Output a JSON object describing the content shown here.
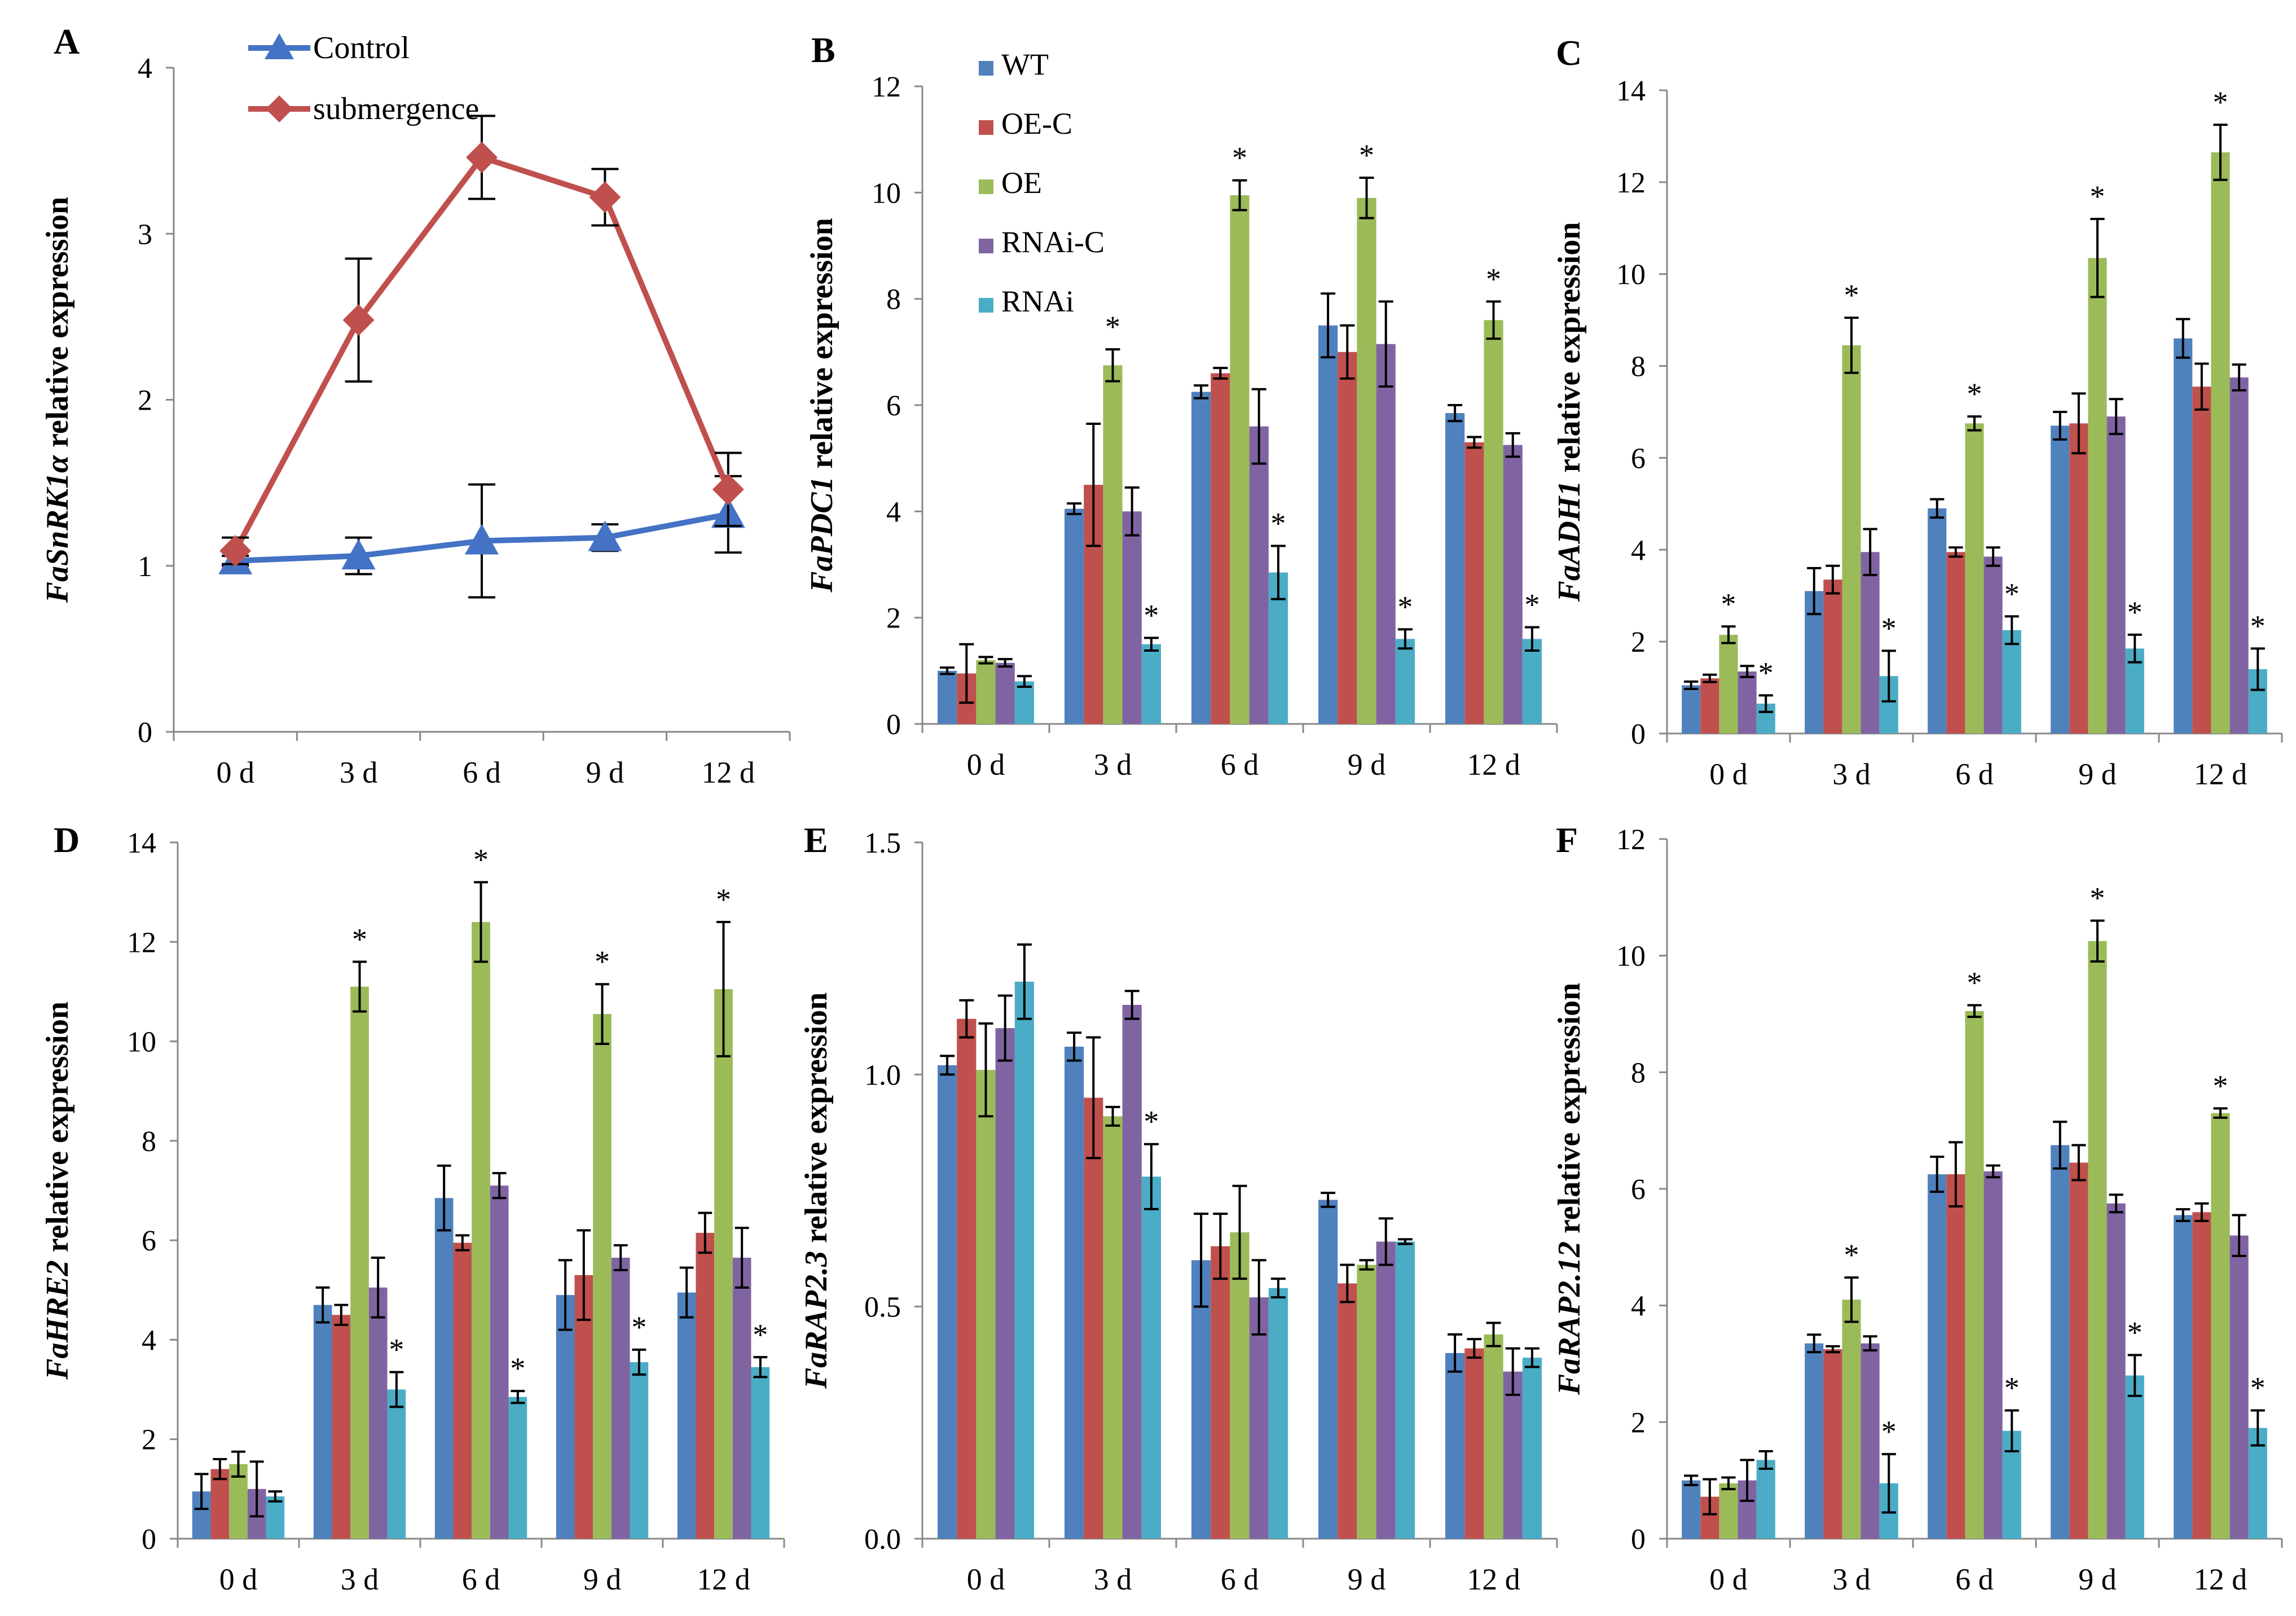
{
  "figure": {
    "legend_a": [
      {
        "name": "Control",
        "color": "#4472C4"
      },
      {
        "name": "submergence",
        "color": "#C0504D"
      }
    ],
    "legend_bars": [
      {
        "name": "WT",
        "color": "#4F81BD"
      },
      {
        "name": "OE-C",
        "color": "#C0504D"
      },
      {
        "name": "OE",
        "color": "#9BBB59"
      },
      {
        "name": "RNAi-C",
        "color": "#8064A2"
      },
      {
        "name": "RNAi",
        "color": "#4BACC6"
      }
    ],
    "significance_marker": "*"
  },
  "chart_data": [
    {
      "panel": "A",
      "type": "line",
      "ylabel_italic": "FaSnRK1α",
      "ylabel_rest": " relative expression",
      "categories": [
        "0 d",
        "3 d",
        "6 d",
        "9 d",
        "12 d"
      ],
      "ylim": [
        0,
        4
      ],
      "yticks": [
        "0",
        "1",
        "2",
        "3",
        "4"
      ],
      "series": [
        {
          "name": "Control",
          "values": [
            1.03,
            1.06,
            1.15,
            1.17,
            1.31
          ],
          "errors": [
            0.03,
            0.11,
            0.34,
            0.08,
            0.23
          ]
        },
        {
          "name": "submergence",
          "values": [
            1.09,
            2.48,
            3.46,
            3.22,
            1.46
          ],
          "errors": [
            0.08,
            0.37,
            0.25,
            0.17,
            0.22
          ]
        }
      ]
    },
    {
      "panel": "B",
      "type": "bar",
      "ylabel_italic": "FaPDC1",
      "ylabel_rest": " relative expression",
      "categories": [
        "0 d",
        "3 d",
        "6 d",
        "9 d",
        "12 d"
      ],
      "ylim": [
        0,
        12
      ],
      "yticks": [
        "0",
        "2",
        "4",
        "6",
        "8",
        "10",
        "12"
      ],
      "series": [
        {
          "name": "WT",
          "values": [
            1.0,
            4.05,
            6.25,
            7.5,
            5.85
          ],
          "errors": [
            0.06,
            0.1,
            0.12,
            0.6,
            0.15
          ]
        },
        {
          "name": "OE-C",
          "values": [
            0.95,
            4.5,
            6.6,
            7.0,
            5.3
          ],
          "errors": [
            0.55,
            1.15,
            0.1,
            0.5,
            0.1
          ]
        },
        {
          "name": "OE",
          "values": [
            1.2,
            6.75,
            9.95,
            9.9,
            7.6
          ],
          "errors": [
            0.06,
            0.3,
            0.28,
            0.38,
            0.35
          ]
        },
        {
          "name": "RNAi-C",
          "values": [
            1.15,
            4.0,
            5.6,
            7.15,
            5.25
          ],
          "errors": [
            0.07,
            0.45,
            0.7,
            0.8,
            0.22
          ]
        },
        {
          "name": "RNAi",
          "values": [
            0.8,
            1.5,
            2.85,
            1.6,
            1.6
          ],
          "errors": [
            0.1,
            0.12,
            0.5,
            0.18,
            0.22
          ]
        }
      ],
      "significant": [
        [],
        [
          "OE",
          "RNAi"
        ],
        [
          "OE",
          "RNAi"
        ],
        [
          "OE",
          "RNAi"
        ],
        [
          "OE",
          "RNAi"
        ]
      ]
    },
    {
      "panel": "C",
      "type": "bar",
      "ylabel_italic": "FaADH1",
      "ylabel_rest": " relative expression",
      "categories": [
        "0 d",
        "3 d",
        "6 d",
        "9 d",
        "12 d"
      ],
      "ylim": [
        0,
        14
      ],
      "yticks": [
        "0",
        "2",
        "4",
        "6",
        "8",
        "10",
        "12",
        "14"
      ],
      "series": [
        {
          "name": "WT",
          "values": [
            1.05,
            3.1,
            4.9,
            6.7,
            8.6
          ],
          "errors": [
            0.08,
            0.5,
            0.2,
            0.3,
            0.42
          ]
        },
        {
          "name": "OE-C",
          "values": [
            1.2,
            3.35,
            3.95,
            6.75,
            7.55
          ],
          "errors": [
            0.08,
            0.3,
            0.1,
            0.65,
            0.5
          ]
        },
        {
          "name": "OE",
          "values": [
            2.15,
            8.45,
            6.75,
            10.35,
            12.65
          ],
          "errors": [
            0.18,
            0.6,
            0.15,
            0.85,
            0.6
          ]
        },
        {
          "name": "RNAi-C",
          "values": [
            1.35,
            3.95,
            3.85,
            6.9,
            7.75
          ],
          "errors": [
            0.12,
            0.5,
            0.2,
            0.38,
            0.28
          ]
        },
        {
          "name": "RNAi",
          "values": [
            0.65,
            1.25,
            2.25,
            1.85,
            1.4
          ],
          "errors": [
            0.18,
            0.55,
            0.3,
            0.3,
            0.45
          ]
        }
      ],
      "significant": [
        [
          "OE",
          "RNAi"
        ],
        [
          "OE",
          "RNAi"
        ],
        [
          "OE",
          "RNAi"
        ],
        [
          "OE",
          "RNAi"
        ],
        [
          "OE",
          "RNAi"
        ]
      ]
    },
    {
      "panel": "D",
      "type": "bar",
      "ylabel_italic": "FaHRE2",
      "ylabel_rest": " relative expression",
      "categories": [
        "0 d",
        "3 d",
        "6 d",
        "9 d",
        "12 d"
      ],
      "ylim": [
        0,
        14
      ],
      "yticks": [
        "0",
        "2",
        "4",
        "6",
        "8",
        "10",
        "12",
        "14"
      ],
      "series": [
        {
          "name": "WT",
          "values": [
            0.95,
            4.7,
            6.85,
            4.9,
            4.95
          ],
          "errors": [
            0.35,
            0.35,
            0.65,
            0.7,
            0.5
          ]
        },
        {
          "name": "OE-C",
          "values": [
            1.4,
            4.5,
            5.95,
            5.3,
            6.15
          ],
          "errors": [
            0.2,
            0.2,
            0.15,
            0.9,
            0.4
          ]
        },
        {
          "name": "OE",
          "values": [
            1.5,
            11.1,
            12.4,
            10.55,
            11.05
          ],
          "errors": [
            0.25,
            0.5,
            0.8,
            0.6,
            1.35
          ]
        },
        {
          "name": "RNAi-C",
          "values": [
            1.0,
            5.05,
            7.1,
            5.65,
            5.65
          ],
          "errors": [
            0.55,
            0.6,
            0.25,
            0.25,
            0.6
          ]
        },
        {
          "name": "RNAi",
          "values": [
            0.85,
            3.0,
            2.85,
            3.55,
            3.45
          ],
          "errors": [
            0.1,
            0.35,
            0.12,
            0.25,
            0.2
          ]
        }
      ],
      "significant": [
        [],
        [
          "OE",
          "RNAi"
        ],
        [
          "OE",
          "RNAi"
        ],
        [
          "OE",
          "RNAi"
        ],
        [
          "OE",
          "RNAi"
        ]
      ]
    },
    {
      "panel": "E",
      "type": "bar",
      "ylabel_italic": "FaRAP2.3",
      "ylabel_rest": " relative expression",
      "categories": [
        "0 d",
        "3 d",
        "6 d",
        "9 d",
        "12 d"
      ],
      "ylim": [
        0,
        1.5
      ],
      "yticks": [
        "0.0",
        "0.5",
        "1.0",
        "1.5"
      ],
      "series": [
        {
          "name": "WT",
          "values": [
            1.02,
            1.06,
            0.6,
            0.73,
            0.4
          ],
          "errors": [
            0.02,
            0.03,
            0.1,
            0.015,
            0.04
          ]
        },
        {
          "name": "OE-C",
          "values": [
            1.12,
            0.95,
            0.63,
            0.55,
            0.41
          ],
          "errors": [
            0.04,
            0.13,
            0.07,
            0.04,
            0.02
          ]
        },
        {
          "name": "OE",
          "values": [
            1.01,
            0.91,
            0.66,
            0.59,
            0.44
          ],
          "errors": [
            0.1,
            0.02,
            0.1,
            0.01,
            0.025
          ]
        },
        {
          "name": "RNAi-C",
          "values": [
            1.1,
            1.15,
            0.52,
            0.64,
            0.36
          ],
          "errors": [
            0.07,
            0.03,
            0.08,
            0.05,
            0.05
          ]
        },
        {
          "name": "RNAi",
          "values": [
            1.2,
            0.78,
            0.54,
            0.64,
            0.39
          ],
          "errors": [
            0.08,
            0.07,
            0.02,
            0.005,
            0.02
          ]
        }
      ],
      "significant": [
        [],
        [
          "RNAi"
        ],
        [],
        [],
        []
      ]
    },
    {
      "panel": "F",
      "type": "bar",
      "ylabel_italic": "FaRAP2.12",
      "ylabel_rest": " relative expression",
      "categories": [
        "0 d",
        "3 d",
        "6 d",
        "9 d",
        "12 d"
      ],
      "ylim": [
        0,
        12
      ],
      "yticks": [
        "0",
        "2",
        "4",
        "6",
        "8",
        "10",
        "12"
      ],
      "series": [
        {
          "name": "WT",
          "values": [
            1.0,
            3.35,
            6.25,
            6.75,
            5.55
          ],
          "errors": [
            0.08,
            0.15,
            0.3,
            0.4,
            0.1
          ]
        },
        {
          "name": "OE-C",
          "values": [
            0.72,
            3.25,
            6.25,
            6.45,
            5.6
          ],
          "errors": [
            0.3,
            0.05,
            0.55,
            0.3,
            0.15
          ]
        },
        {
          "name": "OE",
          "values": [
            0.95,
            4.1,
            9.05,
            10.25,
            7.3
          ],
          "errors": [
            0.1,
            0.38,
            0.1,
            0.35,
            0.08
          ]
        },
        {
          "name": "RNAi-C",
          "values": [
            1.0,
            3.35,
            6.3,
            5.75,
            5.2
          ],
          "errors": [
            0.35,
            0.12,
            0.1,
            0.15,
            0.35
          ]
        },
        {
          "name": "RNAi",
          "values": [
            1.35,
            0.95,
            1.85,
            2.8,
            1.9
          ],
          "errors": [
            0.15,
            0.5,
            0.35,
            0.35,
            0.3
          ]
        }
      ],
      "significant": [
        [],
        [
          "OE",
          "RNAi"
        ],
        [
          "OE",
          "RNAi"
        ],
        [
          "OE",
          "RNAi"
        ],
        [
          "OE",
          "RNAi"
        ]
      ]
    }
  ]
}
